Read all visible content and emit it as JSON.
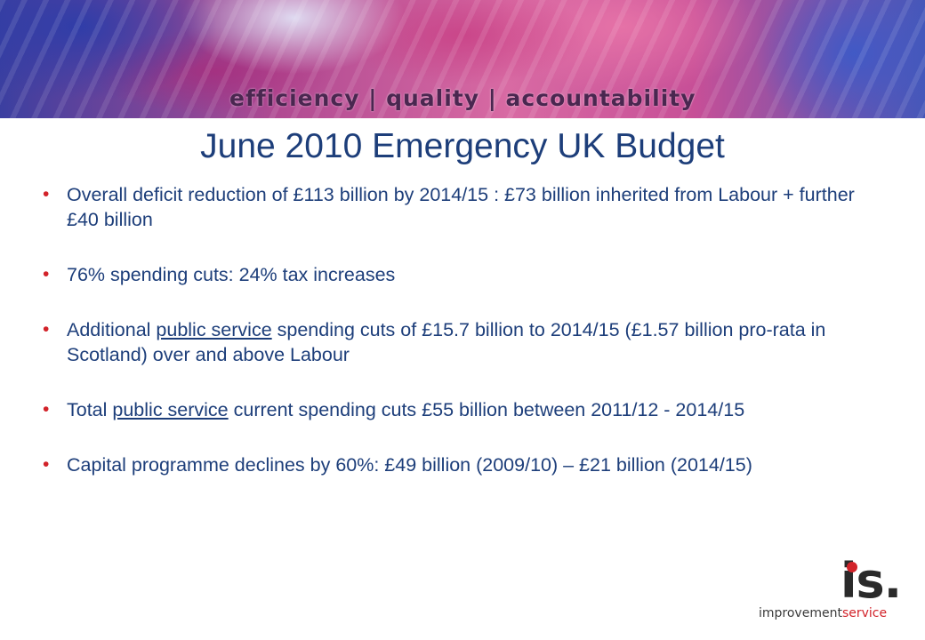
{
  "banner": {
    "tagline": "efficiency | quality | accountability"
  },
  "slide": {
    "title": "June 2010 Emergency UK Budget",
    "bullets": [
      {
        "segments": [
          {
            "text": "Overall deficit reduction of £113 billion by 2014/15 : £73 billion inherited from Labour + further £40 billion",
            "underline": false
          }
        ]
      },
      {
        "segments": [
          {
            "text": "76% spending cuts: 24% tax increases",
            "underline": false
          }
        ]
      },
      {
        "segments": [
          {
            "text": "Additional ",
            "underline": false
          },
          {
            "text": "public service",
            "underline": true
          },
          {
            "text": " spending cuts of £15.7 billion to 2014/15 (£1.57 billion pro-rata in Scotland) over and above Labour",
            "underline": false
          }
        ]
      },
      {
        "segments": [
          {
            "text": "Total ",
            "underline": false
          },
          {
            "text": "public service",
            "underline": true
          },
          {
            "text": " current spending cuts £55 billion between 2011/12 - 2014/15",
            "underline": false
          }
        ]
      },
      {
        "segments": [
          {
            "text": "Capital programme declines by 60%: £49 billion (2009/10) – £21 billion (2014/15)",
            "underline": false
          }
        ]
      }
    ],
    "bullet_glyph": "•"
  },
  "logo": {
    "mark": "is.",
    "word_part1": "improvement",
    "word_part2": "service"
  },
  "colors": {
    "title": "#1d3e7a",
    "bullet": "#d2232a",
    "logo_accent": "#d2232a"
  }
}
